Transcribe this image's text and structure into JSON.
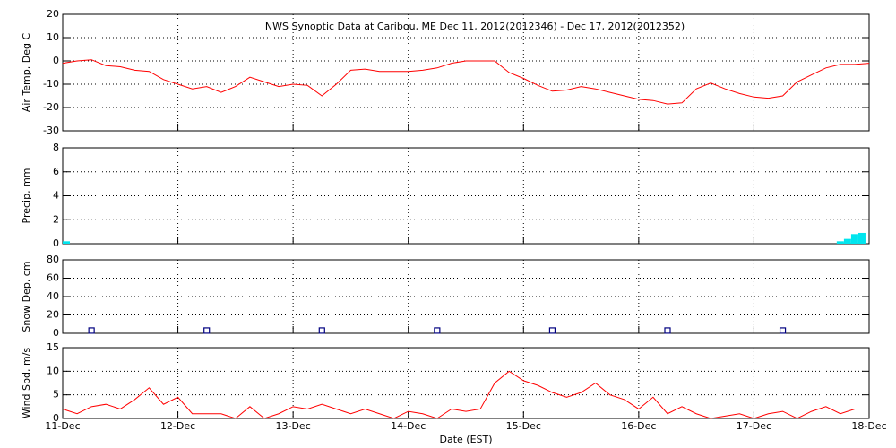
{
  "chart_data": [
    {
      "type": "line",
      "title": "NWS Synoptic Data at Caribou, ME   Dec 11, 2012(2012346) - Dec 17, 2012(2012352)",
      "ylabel": "Air Temp, Deg C",
      "x": [
        0,
        3,
        6,
        9,
        12,
        15,
        18,
        21,
        24,
        27,
        30,
        33,
        36,
        39,
        42,
        45,
        48,
        51,
        54,
        57,
        60,
        63,
        66,
        69,
        72,
        75,
        78,
        81,
        84,
        87,
        90,
        93,
        96,
        99,
        102,
        105,
        108,
        111,
        114,
        117,
        120,
        123,
        126,
        129,
        132,
        135,
        138,
        141,
        144,
        147,
        150,
        153,
        156,
        159,
        162,
        165,
        168
      ],
      "series": [
        {
          "name": "Air Temp",
          "color": "#ff0000",
          "values": [
            -1,
            0,
            0.5,
            -2,
            -2.5,
            -4,
            -4.5,
            -8,
            -10,
            -12,
            -11,
            -13.5,
            -11,
            -7,
            -9,
            -11,
            -10,
            -10.5,
            -15,
            -10,
            -4,
            -3.5,
            -4.5,
            -4.5,
            -4.5,
            -4,
            -3,
            -1,
            0,
            0,
            0,
            -5,
            -7.5,
            -10.5,
            -13,
            -12.5,
            -11,
            -12,
            -13.5,
            -15,
            -16.5,
            -17,
            -18.5,
            -18,
            -12,
            -9.5,
            -12,
            -14,
            -15.5,
            -16,
            -15,
            -9,
            -6,
            -3,
            -1.5,
            -1.5,
            -1
          ]
        }
      ],
      "xlim": [
        0,
        168
      ],
      "xticks": [
        0,
        24,
        48,
        72,
        96,
        120,
        144,
        168
      ],
      "ylim": [
        -30,
        20
      ],
      "yticks": [
        -30,
        -20,
        -10,
        0,
        10,
        20
      ],
      "grid": true
    },
    {
      "type": "bar",
      "ylabel": "Precip, mm",
      "x": [
        0,
        162,
        163.5,
        165,
        166.5
      ],
      "series": [
        {
          "name": "Precip",
          "color": "#00e5ee",
          "values": [
            0.2,
            0.2,
            0.4,
            0.8,
            0.9
          ]
        }
      ],
      "xlim": [
        0,
        168
      ],
      "xticks": [
        0,
        24,
        48,
        72,
        96,
        120,
        144,
        168
      ],
      "ylim": [
        0,
        8
      ],
      "yticks": [
        0,
        2,
        4,
        6,
        8
      ],
      "grid": true
    },
    {
      "type": "scatter",
      "ylabel": "Snow Dep, cm",
      "x": [
        6,
        30,
        54,
        78,
        102,
        126,
        150
      ],
      "series": [
        {
          "name": "Snow Depth",
          "color": "#000080",
          "values": [
            3,
            3,
            3,
            3,
            3,
            3,
            3
          ]
        }
      ],
      "xlim": [
        0,
        168
      ],
      "xticks": [
        0,
        24,
        48,
        72,
        96,
        120,
        144,
        168
      ],
      "ylim": [
        0,
        80
      ],
      "yticks": [
        0,
        20,
        40,
        60,
        80
      ],
      "grid": true
    },
    {
      "type": "line",
      "ylabel": "Wind Spd, m/s",
      "xlabel": "Date (EST)",
      "x": [
        0,
        3,
        6,
        9,
        12,
        15,
        18,
        21,
        24,
        27,
        30,
        33,
        36,
        39,
        42,
        45,
        48,
        51,
        54,
        57,
        60,
        63,
        66,
        69,
        72,
        75,
        78,
        81,
        84,
        87,
        90,
        93,
        96,
        99,
        102,
        105,
        108,
        111,
        114,
        117,
        120,
        123,
        126,
        129,
        132,
        135,
        138,
        141,
        144,
        147,
        150,
        153,
        156,
        159,
        162,
        165,
        168
      ],
      "series": [
        {
          "name": "Wind Speed",
          "color": "#ff0000",
          "values": [
            2,
            1,
            2.5,
            3,
            2,
            4,
            6.5,
            3,
            4.5,
            1,
            1,
            1,
            0,
            2.5,
            0,
            1,
            2.5,
            2,
            3,
            2,
            1,
            2,
            1,
            0,
            1.5,
            1,
            0,
            2,
            1.5,
            2,
            7.5,
            10,
            8,
            7,
            5.5,
            4.5,
            5.5,
            7.5,
            5,
            4,
            2,
            4.5,
            1,
            2.5,
            1,
            0,
            0.5,
            1,
            0,
            1,
            1.5,
            0,
            1.5,
            2.5,
            1,
            2,
            2
          ]
        }
      ],
      "xlim": [
        0,
        168
      ],
      "xticks": [
        {
          "value": 0,
          "label": "11-Dec"
        },
        {
          "value": 24,
          "label": "12-Dec"
        },
        {
          "value": 48,
          "label": "13-Dec"
        },
        {
          "value": 72,
          "label": "14-Dec"
        },
        {
          "value": 96,
          "label": "15-Dec"
        },
        {
          "value": 120,
          "label": "16-Dec"
        },
        {
          "value": 144,
          "label": "17-Dec"
        },
        {
          "value": 168,
          "label": "18-Dec"
        }
      ],
      "ylim": [
        0,
        15
      ],
      "yticks": [
        0,
        5,
        10,
        15
      ],
      "grid": true
    }
  ]
}
